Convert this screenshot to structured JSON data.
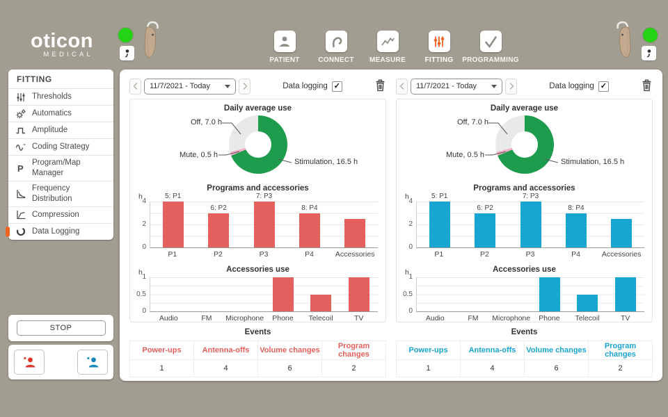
{
  "brand": {
    "name": "oticon",
    "subtitle": "MEDICAL"
  },
  "toolbar": {
    "active_color": "#ef6323",
    "items": [
      {
        "label": "PATIENT",
        "icon": "patient-icon",
        "active": false
      },
      {
        "label": "CONNECT",
        "icon": "connect-icon",
        "active": false
      },
      {
        "label": "MEASURE",
        "icon": "measure-icon",
        "active": false
      },
      {
        "label": "FITTING",
        "icon": "fitting-icon",
        "active": true
      },
      {
        "label": "PROGRAMMING",
        "icon": "programming-icon",
        "active": false
      }
    ]
  },
  "devices": {
    "left_status_color": "#25d315",
    "right_status_color": "#25d315"
  },
  "sidebar": {
    "header": "FITTING",
    "active_marker_color": "#ef6323",
    "items": [
      {
        "label": "Thresholds",
        "icon": "thresholds-icon",
        "active": false
      },
      {
        "label": "Automatics",
        "icon": "automatics-icon",
        "active": false
      },
      {
        "label": "Amplitude",
        "icon": "amplitude-icon",
        "active": false
      },
      {
        "label": "Coding Strategy",
        "icon": "coding-strategy-icon",
        "active": false
      },
      {
        "label": "Program/Map Manager",
        "icon": "program-map-icon",
        "active": false
      },
      {
        "label": "Frequency Distribution",
        "icon": "frequency-distribution-icon",
        "active": false
      },
      {
        "label": "Compression",
        "icon": "compression-icon",
        "active": false
      },
      {
        "label": "Data Logging",
        "icon": "data-logging-icon",
        "active": true
      }
    ]
  },
  "session": {
    "stop_label": "STOP"
  },
  "ear_buttons": {
    "left_color": "#e0332a",
    "right_color": "#1787b8"
  },
  "panels": [
    {
      "accent": "#e4605e",
      "date_range": "11/7/2021 - Today",
      "data_logging_label": "Data logging",
      "data_logging_checked": true,
      "donut": {
        "type": "donut",
        "title": "Daily average use",
        "unit": "h",
        "total_hours": 24,
        "segments": [
          {
            "label": "Stimulation, 16.5 h",
            "value": 16.5,
            "color": "#1e9c4d"
          },
          {
            "label": "Mute, 0.5 h",
            "value": 0.5,
            "color": "#f3aec4"
          },
          {
            "label": "Off, 7.0 h",
            "value": 7.0,
            "color": "#e9e9e7"
          }
        ]
      },
      "programs": {
        "type": "bar",
        "title": "Programs and accessories",
        "unit": "h",
        "ymax": 4,
        "yticks": [
          0,
          2,
          4
        ],
        "categories": [
          "P1",
          "P2",
          "P3",
          "P4",
          "Accessories"
        ],
        "values": [
          4,
          3,
          4,
          3,
          2.5
        ],
        "bar_labels": [
          "5: P1",
          "6: P2",
          "7: P3",
          "8: P4",
          ""
        ]
      },
      "accessories": {
        "type": "bar",
        "title": "Accessories use",
        "unit": "h",
        "ymax": 1,
        "yticks": [
          0,
          0.5,
          1
        ],
        "categories": [
          "Audio",
          "FM",
          "Microphone",
          "Phone",
          "Telecoil",
          "TV"
        ],
        "values": [
          0,
          0,
          0,
          1,
          0.5,
          1
        ],
        "bar_labels": [
          "",
          "",
          "",
          "",
          "",
          ""
        ]
      },
      "events": {
        "title": "Events",
        "headers": [
          "Power-ups",
          "Antenna-offs",
          "Volume changes",
          "Program changes"
        ],
        "values": [
          1,
          4,
          6,
          2
        ]
      }
    },
    {
      "accent": "#19a5d2",
      "date_range": "11/7/2021 - Today",
      "data_logging_label": "Data logging",
      "data_logging_checked": true,
      "donut": {
        "type": "donut",
        "title": "Daily average use",
        "unit": "h",
        "total_hours": 24,
        "segments": [
          {
            "label": "Stimulation, 16.5 h",
            "value": 16.5,
            "color": "#1e9c4d"
          },
          {
            "label": "Mute, 0.5 h",
            "value": 0.5,
            "color": "#f3aec4"
          },
          {
            "label": "Off, 7.0 h",
            "value": 7.0,
            "color": "#e9e9e7"
          }
        ]
      },
      "programs": {
        "type": "bar",
        "title": "Programs and accessories",
        "unit": "h",
        "ymax": 4,
        "yticks": [
          0,
          2,
          4
        ],
        "categories": [
          "P1",
          "P2",
          "P3",
          "P4",
          "Accessories"
        ],
        "values": [
          4,
          3,
          4,
          3,
          2.5
        ],
        "bar_labels": [
          "5: P1",
          "6: P2",
          "7: P3",
          "8: P4",
          ""
        ]
      },
      "accessories": {
        "type": "bar",
        "title": "Accessories use",
        "unit": "h",
        "ymax": 1,
        "yticks": [
          0,
          0.5,
          1
        ],
        "categories": [
          "Audio",
          "FM",
          "Microphone",
          "Phone",
          "Telecoil",
          "TV"
        ],
        "values": [
          0,
          0,
          0,
          1,
          0.5,
          1
        ],
        "bar_labels": [
          "",
          "",
          "",
          "",
          "",
          ""
        ]
      },
      "events": {
        "title": "Events",
        "headers": [
          "Power-ups",
          "Antenna-offs",
          "Volume changes",
          "Program changes"
        ],
        "values": [
          1,
          4,
          6,
          2
        ]
      }
    }
  ]
}
